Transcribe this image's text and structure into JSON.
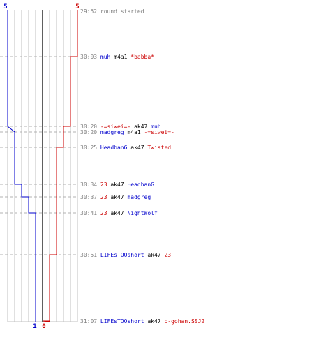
{
  "chart_data": {
    "type": "line",
    "title": "",
    "xlabel": "",
    "ylabel": "",
    "series": [
      {
        "color": "#0000cc",
        "start_value": "5",
        "end_value": "1",
        "values": [
          5,
          5,
          5,
          4,
          4,
          4,
          3,
          2,
          1,
          1,
          1
        ]
      },
      {
        "color": "#cc0000",
        "start_value": "5",
        "end_value": "0",
        "values": [
          5,
          5,
          4,
          4,
          3,
          3,
          3,
          3,
          3,
          2,
          1,
          0
        ]
      }
    ],
    "events": [
      {
        "time": "29:52",
        "parts": [
          {
            "text": "round started",
            "color": "#808080"
          }
        ]
      },
      {
        "time": "30:03",
        "parts": [
          {
            "text": "muh",
            "color": "#0000cc"
          },
          {
            "text": "m4a1",
            "color": "#000000"
          },
          {
            "text": "*babba*",
            "color": "#cc0000"
          }
        ]
      },
      {
        "time": "30:20",
        "parts": [
          {
            "text": "-=siwei=-",
            "color": "#cc0000"
          },
          {
            "text": "ak47",
            "color": "#000000"
          },
          {
            "text": "muh",
            "color": "#0000cc"
          }
        ]
      },
      {
        "time": "30:20",
        "parts": [
          {
            "text": "madgreg",
            "color": "#0000cc"
          },
          {
            "text": "m4a1",
            "color": "#000000"
          },
          {
            "text": "-=siwei=-",
            "color": "#cc0000"
          }
        ]
      },
      {
        "time": "30:25",
        "parts": [
          {
            "text": "HeadbanG",
            "color": "#0000cc"
          },
          {
            "text": "ak47",
            "color": "#000000"
          },
          {
            "text": "Twisted",
            "color": "#cc0000"
          }
        ]
      },
      {
        "time": "30:34",
        "parts": [
          {
            "text": "23",
            "color": "#cc0000"
          },
          {
            "text": "ak47",
            "color": "#000000"
          },
          {
            "text": "HeadbanG",
            "color": "#0000cc"
          }
        ]
      },
      {
        "time": "30:37",
        "parts": [
          {
            "text": "23",
            "color": "#cc0000"
          },
          {
            "text": "ak47",
            "color": "#000000"
          },
          {
            "text": "madgreg",
            "color": "#0000cc"
          }
        ]
      },
      {
        "time": "30:41",
        "parts": [
          {
            "text": "23",
            "color": "#cc0000"
          },
          {
            "text": "ak47",
            "color": "#000000"
          },
          {
            "text": "NightWolf",
            "color": "#0000cc"
          }
        ]
      },
      {
        "time": "30:51",
        "parts": [
          {
            "text": "LIFEsTOOshort",
            "color": "#0000cc"
          },
          {
            "text": "ak47",
            "color": "#000000"
          },
          {
            "text": "23",
            "color": "#cc0000"
          }
        ]
      },
      {
        "time": "31:07",
        "parts": [
          {
            "text": "LIFEsTOOshort",
            "color": "#0000cc"
          },
          {
            "text": "ak47",
            "color": "#000000"
          },
          {
            "text": "p-gohan.SSJ2",
            "color": "#cc0000"
          }
        ]
      }
    ],
    "grid": true,
    "axis_color": "#808080",
    "grid_color": "#c0c0c0"
  }
}
